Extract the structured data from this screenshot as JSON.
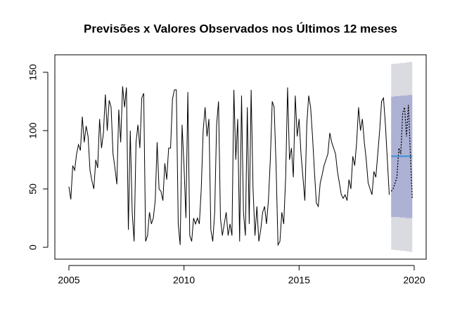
{
  "chart_data": {
    "type": "forecast",
    "title": "Previsões x Valores Observados nos Últimos 12 meses",
    "frequency": 12,
    "xlim": [
      2004.39,
      2020.52
    ],
    "ylim": [
      -10.2,
      165
    ],
    "xticks": [
      2005,
      2010,
      2015,
      2020
    ],
    "yticks": [
      0,
      50,
      100,
      150
    ],
    "history": {
      "start": 2005,
      "color": "#000000",
      "values": [
        52,
        41,
        70,
        66,
        80,
        88,
        83,
        112,
        90,
        104,
        95,
        66,
        57,
        50,
        75,
        68,
        110,
        85,
        98,
        131,
        100,
        126,
        120,
        80,
        68,
        54,
        118,
        90,
        138,
        120,
        137,
        15,
        100,
        30,
        5,
        90,
        105,
        85,
        128,
        132,
        5,
        10,
        30,
        20,
        25,
        40,
        90,
        50,
        48,
        40,
        72,
        58,
        85,
        85,
        127,
        135,
        135,
        20,
        2,
        105,
        70,
        25,
        133,
        10,
        5,
        25,
        20,
        25,
        20,
        50,
        100,
        120,
        95,
        110,
        15,
        5,
        30,
        105,
        125,
        25,
        10,
        20,
        30,
        10,
        20,
        10,
        135,
        75,
        110,
        5,
        130,
        30,
        10,
        120,
        20,
        135,
        50,
        10,
        35,
        5,
        15,
        30,
        35,
        20,
        40,
        75,
        125,
        120,
        70,
        2,
        5,
        30,
        20,
        60,
        137,
        75,
        85,
        60,
        130,
        95,
        110,
        80,
        60,
        40,
        105,
        130,
        120,
        95,
        65,
        38,
        35,
        55,
        62,
        70,
        75,
        80,
        98,
        90,
        85,
        80,
        65,
        55,
        45,
        42,
        45,
        40,
        58,
        50,
        78,
        70,
        90,
        120,
        100,
        110,
        90,
        75,
        55,
        50,
        45,
        65,
        60,
        80,
        100,
        125,
        128,
        105,
        75,
        45
      ]
    },
    "forecast": {
      "start": 2019,
      "mean_color": "#3a8fd8",
      "band80_color": "#adb1d4",
      "band95_color": "#dadae1",
      "mean": [
        78,
        78,
        78,
        78,
        78,
        78,
        78,
        78,
        78,
        78,
        78,
        78
      ],
      "lo80": [
        26,
        26,
        26,
        26,
        26,
        25.5,
        25.5,
        25.5,
        25,
        25,
        25,
        25
      ],
      "hi80": [
        129,
        129,
        129.5,
        129.5,
        129.5,
        130,
        130,
        130,
        130,
        130.5,
        130.5,
        130.5
      ],
      "lo95": [
        -2,
        -2,
        -2.5,
        -2.5,
        -2.5,
        -3,
        -3,
        -3,
        -3.5,
        -3.5,
        -4,
        -4
      ],
      "hi95": [
        157,
        157,
        157.5,
        157.5,
        157.5,
        158,
        158,
        158,
        158.5,
        158.5,
        159,
        159
      ]
    },
    "observed": {
      "start": 2019,
      "color": "#000000",
      "dashed": true,
      "values": [
        48,
        50,
        55,
        60,
        85,
        80,
        115,
        120,
        95,
        122,
        80,
        42
      ]
    }
  }
}
